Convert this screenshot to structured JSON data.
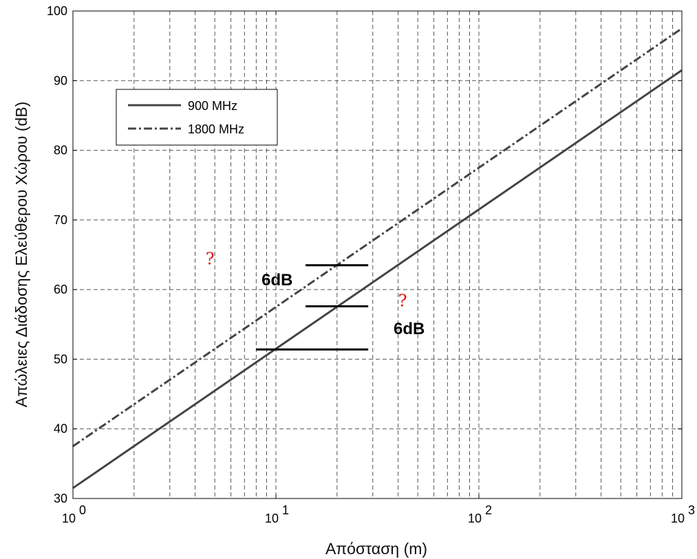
{
  "chart_data": {
    "type": "line",
    "xscale": "log",
    "xlim": [
      1,
      1000
    ],
    "ylim": [
      30,
      100
    ],
    "xlabel": "Απόσταση (m)",
    "ylabel": "Απώλειες Διάδοσης Ελεύθερου Χώρου (dB)",
    "grid": true,
    "legend_position": "top-left",
    "x_ticks": [
      {
        "value": 1,
        "base": "10",
        "exp": "0"
      },
      {
        "value": 10,
        "base": "10",
        "exp": "1"
      },
      {
        "value": 100,
        "base": "10",
        "exp": "2"
      },
      {
        "value": 1000,
        "base": "10",
        "exp": "3"
      }
    ],
    "y_ticks": [
      "30",
      "40",
      "50",
      "60",
      "70",
      "80",
      "90",
      "100"
    ],
    "series": [
      {
        "name": "900 MHz",
        "style": "solid",
        "color": "#444444",
        "x": [
          1,
          10,
          100,
          1000
        ],
        "y": [
          31.5,
          51.5,
          71.5,
          91.5
        ]
      },
      {
        "name": "1800 MHz",
        "style": "dash-dot",
        "color": "#444444",
        "x": [
          1,
          10,
          100,
          1000
        ],
        "y": [
          37.5,
          57.5,
          77.5,
          97.5
        ]
      }
    ],
    "annotations": [
      {
        "text": "6dB",
        "x": 8.5,
        "y": 60.6
      },
      {
        "text": "6dB",
        "x": 38,
        "y": 53.6
      }
    ],
    "reference_lines": [
      {
        "y": 63.5,
        "x_start": 14,
        "x_end": 28.5
      },
      {
        "y": 57.6,
        "x_start": 14,
        "x_end": 28.5
      },
      {
        "y": 51.4,
        "x_start": 8,
        "x_end": 28.5
      }
    ],
    "markers": [
      {
        "text": "?",
        "x": 4.5,
        "y": 63.6,
        "color": "#e01010"
      },
      {
        "text": "?",
        "x": 40,
        "y": 57.6,
        "color": "#e01010"
      }
    ]
  }
}
